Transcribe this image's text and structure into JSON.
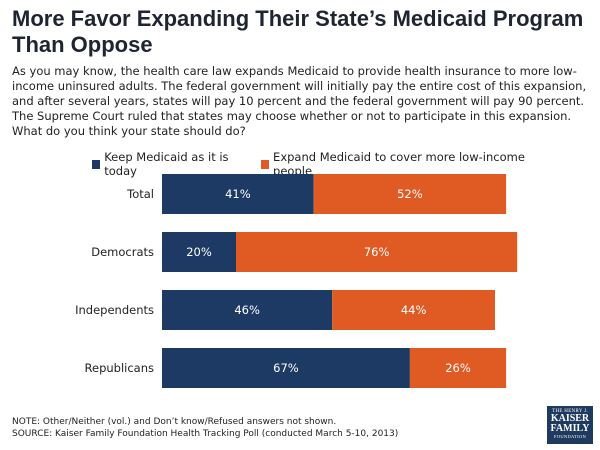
{
  "title": "More Favor Expanding Their State’s Medicaid Program Than Oppose",
  "question": "As you may know, the health care law expands Medicaid to provide health insurance to more low-income uninsured adults. The federal government will initially pay the entire cost of this expansion, and after several years, states will pay 10 percent and the federal government will pay 90 percent. The Supreme Court ruled that states may choose whether or not to participate in this expansion.  What do you think your state should do?",
  "colors": {
    "keep": "#1c3a63",
    "expand": "#e05a24"
  },
  "chart_data": {
    "type": "bar",
    "orientation": "horizontal",
    "stacked": true,
    "categories": [
      "Total",
      "Democrats",
      "Independents",
      "Republicans"
    ],
    "series": [
      {
        "name": "Keep Medicaid as it is today",
        "values": [
          41,
          20,
          46,
          67
        ]
      },
      {
        "name": "Expand Medicaid to cover more low-income people",
        "values": [
          52,
          76,
          44,
          26
        ]
      }
    ],
    "unit": "%",
    "xlim": [
      0,
      100
    ],
    "legend_position": "top"
  },
  "footnotes": {
    "note": "NOTE: Other/Neither (vol.) and Don’t know/Refused answers not shown.",
    "source": "SOURCE: Kaiser Family Foundation Health Tracking Poll (conducted March 5-10, 2013)"
  },
  "logo": {
    "line1": "THE HENRY J.",
    "line2a": "KAISER",
    "line2b": "FAMILY",
    "line3": "FOUNDATION"
  }
}
